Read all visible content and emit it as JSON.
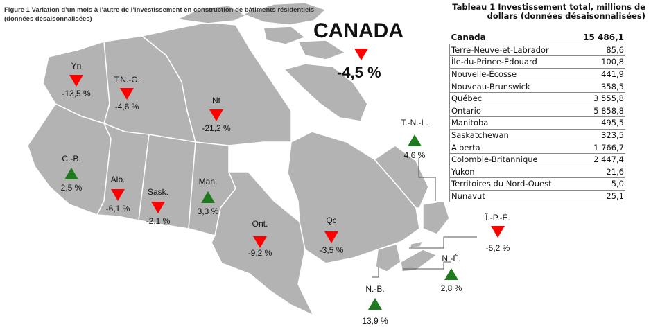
{
  "figure": {
    "title_line1": "Figure 1 Variation d’un mois à l’autre de l’investissement en construction de bâtiments résidentiels",
    "title_line2": "(données désaisonnalisées)"
  },
  "canada": {
    "label": "CANADA",
    "change": "-4,5 %",
    "direction": "down"
  },
  "colors": {
    "down": "#ff0000",
    "up": "#1f7a1f",
    "land": "#b3b3b3",
    "border": "#ffffff",
    "water": "#ffffff"
  },
  "regions": [
    {
      "id": "yn",
      "label": "Yn",
      "change": "-13,5 %",
      "direction": "down"
    },
    {
      "id": "tno",
      "label": "T.N.-O.",
      "change": "-4,6 %",
      "direction": "down"
    },
    {
      "id": "nt",
      "label": "Nt",
      "change": "-21,2 %",
      "direction": "down"
    },
    {
      "id": "cb",
      "label": "C.-B.",
      "change": "2,5 %",
      "direction": "up"
    },
    {
      "id": "alb",
      "label": "Alb.",
      "change": "-6,1 %",
      "direction": "down"
    },
    {
      "id": "sask",
      "label": "Sask.",
      "change": "-2,1 %",
      "direction": "down"
    },
    {
      "id": "man",
      "label": "Man.",
      "change": "3,3 %",
      "direction": "up"
    },
    {
      "id": "ont",
      "label": "Ont.",
      "change": "-9,2 %",
      "direction": "down"
    },
    {
      "id": "qc",
      "label": "Qc",
      "change": "-3,5 %",
      "direction": "down"
    },
    {
      "id": "tnl",
      "label": "T.-N.-L.",
      "change": "4,6 %",
      "direction": "up"
    },
    {
      "id": "ipe",
      "label": "Î.-P.-É.",
      "change": "-5,2 %",
      "direction": "down"
    },
    {
      "id": "ne",
      "label": "N.-É.",
      "change": "2,8 %",
      "direction": "up"
    },
    {
      "id": "nb",
      "label": "N.-B.",
      "change": "13,9 %",
      "direction": "up"
    }
  ],
  "table": {
    "title_line1": "Tableau 1 Investissement total, millions de",
    "title_line2": "dollars (données désaisonnalisées)",
    "header": {
      "label": "Canada",
      "value": "15 486,1"
    },
    "rows": [
      {
        "label": "Terre-Neuve-et-Labrador",
        "value": "85,6"
      },
      {
        "label": "Île-du-Prince-Édouard",
        "value": "100,8"
      },
      {
        "label": "Nouvelle-Écosse",
        "value": "441,9"
      },
      {
        "label": "Nouveau-Brunswick",
        "value": "358,5"
      },
      {
        "label": "Québec",
        "value": "3 555,8"
      },
      {
        "label": "Ontario",
        "value": "5 858,8"
      },
      {
        "label": "Manitoba",
        "value": "495,5"
      },
      {
        "label": "Saskatchewan",
        "value": "323,5"
      },
      {
        "label": "Alberta",
        "value": "1 766,7"
      },
      {
        "label": "Colombie-Britannique",
        "value": "2 447,4"
      },
      {
        "label": "Yukon",
        "value": "21,6"
      },
      {
        "label": "Territoires du Nord-Ouest",
        "value": "5,0"
      },
      {
        "label": "Nunavut",
        "value": "25,1"
      }
    ]
  }
}
